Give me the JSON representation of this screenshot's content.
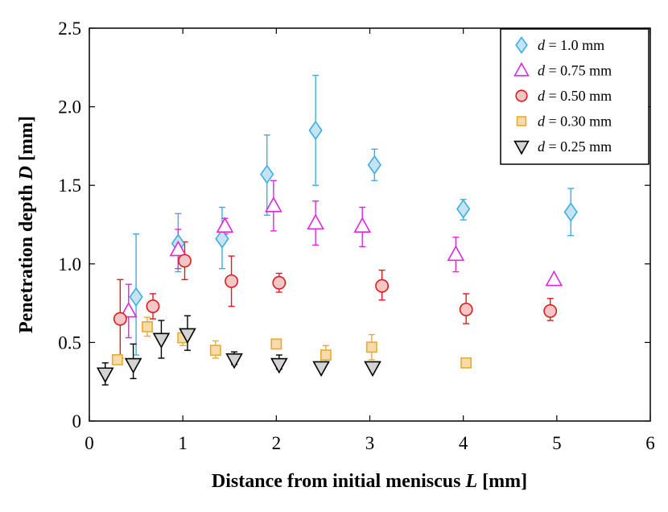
{
  "chart_data": {
    "type": "scatter",
    "title": "",
    "xlabel": {
      "text": "Distance from initial meniscus ",
      "var": "L",
      "unit": " [mm]"
    },
    "ylabel": {
      "text": "Penetration depth ",
      "var": "D",
      "unit": " [mm]"
    },
    "xlim": [
      0,
      6
    ],
    "ylim": [
      0,
      2.5
    ],
    "xticks": [
      0,
      1,
      2,
      3,
      4,
      5,
      6
    ],
    "xtick_labels": [
      "0",
      "1",
      "2",
      "3",
      "4",
      "5",
      "6"
    ],
    "yticks": [
      0,
      0.5,
      1.0,
      1.5,
      2.0,
      2.5
    ],
    "ytick_labels": [
      "0",
      "0.5",
      "1.0",
      "1.5",
      "2.0",
      "2.5"
    ],
    "grid": false,
    "legend_position": "top-right",
    "series": [
      {
        "name": "d = 1.0 mm",
        "legend_var": "d",
        "legend_value": " = 1.0 mm",
        "marker": "diamond",
        "stroke": "#3bb0e0",
        "fill": "#c5e3f2",
        "points": [
          {
            "x": 0.5,
            "y": 0.79,
            "err_lo": 0.42,
            "err_hi": 1.19
          },
          {
            "x": 0.95,
            "y": 1.13,
            "err_lo": 0.95,
            "err_hi": 1.32
          },
          {
            "x": 1.42,
            "y": 1.16,
            "err_lo": 0.97,
            "err_hi": 1.36
          },
          {
            "x": 1.9,
            "y": 1.57,
            "err_lo": 1.31,
            "err_hi": 1.82
          },
          {
            "x": 2.42,
            "y": 1.85,
            "err_lo": 1.5,
            "err_hi": 2.2
          },
          {
            "x": 3.05,
            "y": 1.63,
            "err_lo": 1.53,
            "err_hi": 1.73
          },
          {
            "x": 4.0,
            "y": 1.35,
            "err_lo": 1.28,
            "err_hi": 1.41
          },
          {
            "x": 5.15,
            "y": 1.33,
            "err_lo": 1.18,
            "err_hi": 1.48
          }
        ]
      },
      {
        "name": "d = 0.75 mm",
        "legend_var": "d",
        "legend_value": " = 0.75 mm",
        "marker": "triangle-up",
        "stroke": "#e026e0",
        "fill": "#ffffff",
        "points": [
          {
            "x": 0.42,
            "y": 0.7,
            "err_lo": 0.53,
            "err_hi": 0.87
          },
          {
            "x": 0.95,
            "y": 1.09,
            "err_lo": 0.97,
            "err_hi": 1.22
          },
          {
            "x": 1.45,
            "y": 1.24,
            "err_lo": 1.19,
            "err_hi": 1.29
          },
          {
            "x": 1.97,
            "y": 1.37,
            "err_lo": 1.21,
            "err_hi": 1.53
          },
          {
            "x": 2.42,
            "y": 1.26,
            "err_lo": 1.12,
            "err_hi": 1.4
          },
          {
            "x": 2.92,
            "y": 1.24,
            "err_lo": 1.11,
            "err_hi": 1.36
          },
          {
            "x": 3.92,
            "y": 1.06,
            "err_lo": 0.95,
            "err_hi": 1.17
          },
          {
            "x": 4.97,
            "y": 0.9,
            "err_lo": 0.9,
            "err_hi": 0.9
          }
        ]
      },
      {
        "name": "d = 0.50 mm",
        "legend_var": "d",
        "legend_value": " = 0.50 mm",
        "marker": "circle",
        "stroke": "#e01b1b",
        "fill": "#f5c6c6",
        "points": [
          {
            "x": 0.33,
            "y": 0.65,
            "err_lo": 0.4,
            "err_hi": 0.9
          },
          {
            "x": 0.68,
            "y": 0.73,
            "err_lo": 0.65,
            "err_hi": 0.81
          },
          {
            "x": 1.02,
            "y": 1.02,
            "err_lo": 0.9,
            "err_hi": 1.14
          },
          {
            "x": 1.52,
            "y": 0.89,
            "err_lo": 0.73,
            "err_hi": 1.05
          },
          {
            "x": 2.03,
            "y": 0.88,
            "err_lo": 0.82,
            "err_hi": 0.94
          },
          {
            "x": 3.13,
            "y": 0.86,
            "err_lo": 0.77,
            "err_hi": 0.96
          },
          {
            "x": 4.03,
            "y": 0.71,
            "err_lo": 0.62,
            "err_hi": 0.81
          },
          {
            "x": 4.93,
            "y": 0.7,
            "err_lo": 0.64,
            "err_hi": 0.78
          }
        ]
      },
      {
        "name": "d = 0.30 mm",
        "legend_var": "d",
        "legend_value": " = 0.30 mm",
        "marker": "square",
        "stroke": "#e8ac2c",
        "fill": "#f5dcaa",
        "points": [
          {
            "x": 0.3,
            "y": 0.39,
            "err_lo": 0.39,
            "err_hi": 0.39
          },
          {
            "x": 0.62,
            "y": 0.6,
            "err_lo": 0.54,
            "err_hi": 0.66
          },
          {
            "x": 1.0,
            "y": 0.53,
            "err_lo": 0.48,
            "err_hi": 0.58
          },
          {
            "x": 1.35,
            "y": 0.45,
            "err_lo": 0.4,
            "err_hi": 0.51
          },
          {
            "x": 2.0,
            "y": 0.49,
            "err_lo": 0.49,
            "err_hi": 0.49
          },
          {
            "x": 2.53,
            "y": 0.42,
            "err_lo": 0.37,
            "err_hi": 0.48
          },
          {
            "x": 3.02,
            "y": 0.47,
            "err_lo": 0.39,
            "err_hi": 0.55
          },
          {
            "x": 4.03,
            "y": 0.37,
            "err_lo": 0.37,
            "err_hi": 0.37
          }
        ]
      },
      {
        "name": "d = 0.25 mm",
        "legend_var": "d",
        "legend_value": " = 0.25 mm",
        "marker": "triangle-down",
        "stroke": "#000000",
        "fill": "#d3d3d3",
        "points": [
          {
            "x": 0.17,
            "y": 0.3,
            "err_lo": 0.23,
            "err_hi": 0.37
          },
          {
            "x": 0.47,
            "y": 0.36,
            "err_lo": 0.27,
            "err_hi": 0.49
          },
          {
            "x": 0.77,
            "y": 0.52,
            "err_lo": 0.4,
            "err_hi": 0.64
          },
          {
            "x": 1.05,
            "y": 0.55,
            "err_lo": 0.45,
            "err_hi": 0.67
          },
          {
            "x": 1.55,
            "y": 0.39,
            "err_lo": 0.36,
            "err_hi": 0.44
          },
          {
            "x": 2.03,
            "y": 0.36,
            "err_lo": 0.33,
            "err_hi": 0.42
          },
          {
            "x": 2.48,
            "y": 0.34,
            "err_lo": 0.34,
            "err_hi": 0.34
          },
          {
            "x": 3.03,
            "y": 0.34,
            "err_lo": 0.34,
            "err_hi": 0.34
          }
        ]
      }
    ]
  }
}
